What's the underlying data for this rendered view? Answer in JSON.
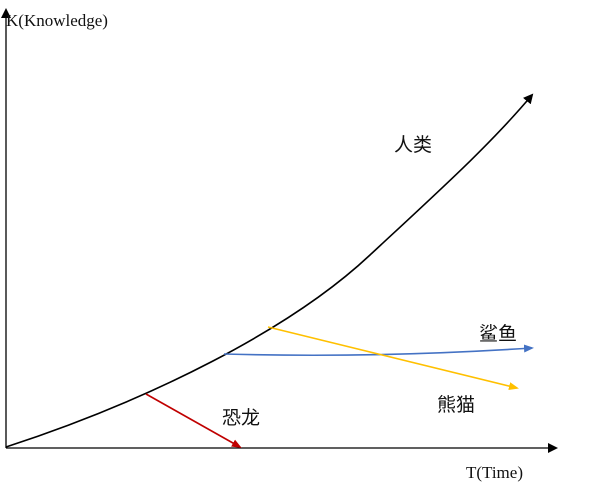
{
  "axes": {
    "y_label": "K(Knowledge)",
    "x_label": "T(Time)"
  },
  "curves": {
    "human": {
      "label": "人类",
      "color": "#000000"
    },
    "shark": {
      "label": "鲨鱼",
      "color": "#4472c4"
    },
    "panda": {
      "label": "熊猫",
      "color": "#ffc000"
    },
    "dinosaur": {
      "label": "恐龙",
      "color": "#c00000"
    }
  }
}
